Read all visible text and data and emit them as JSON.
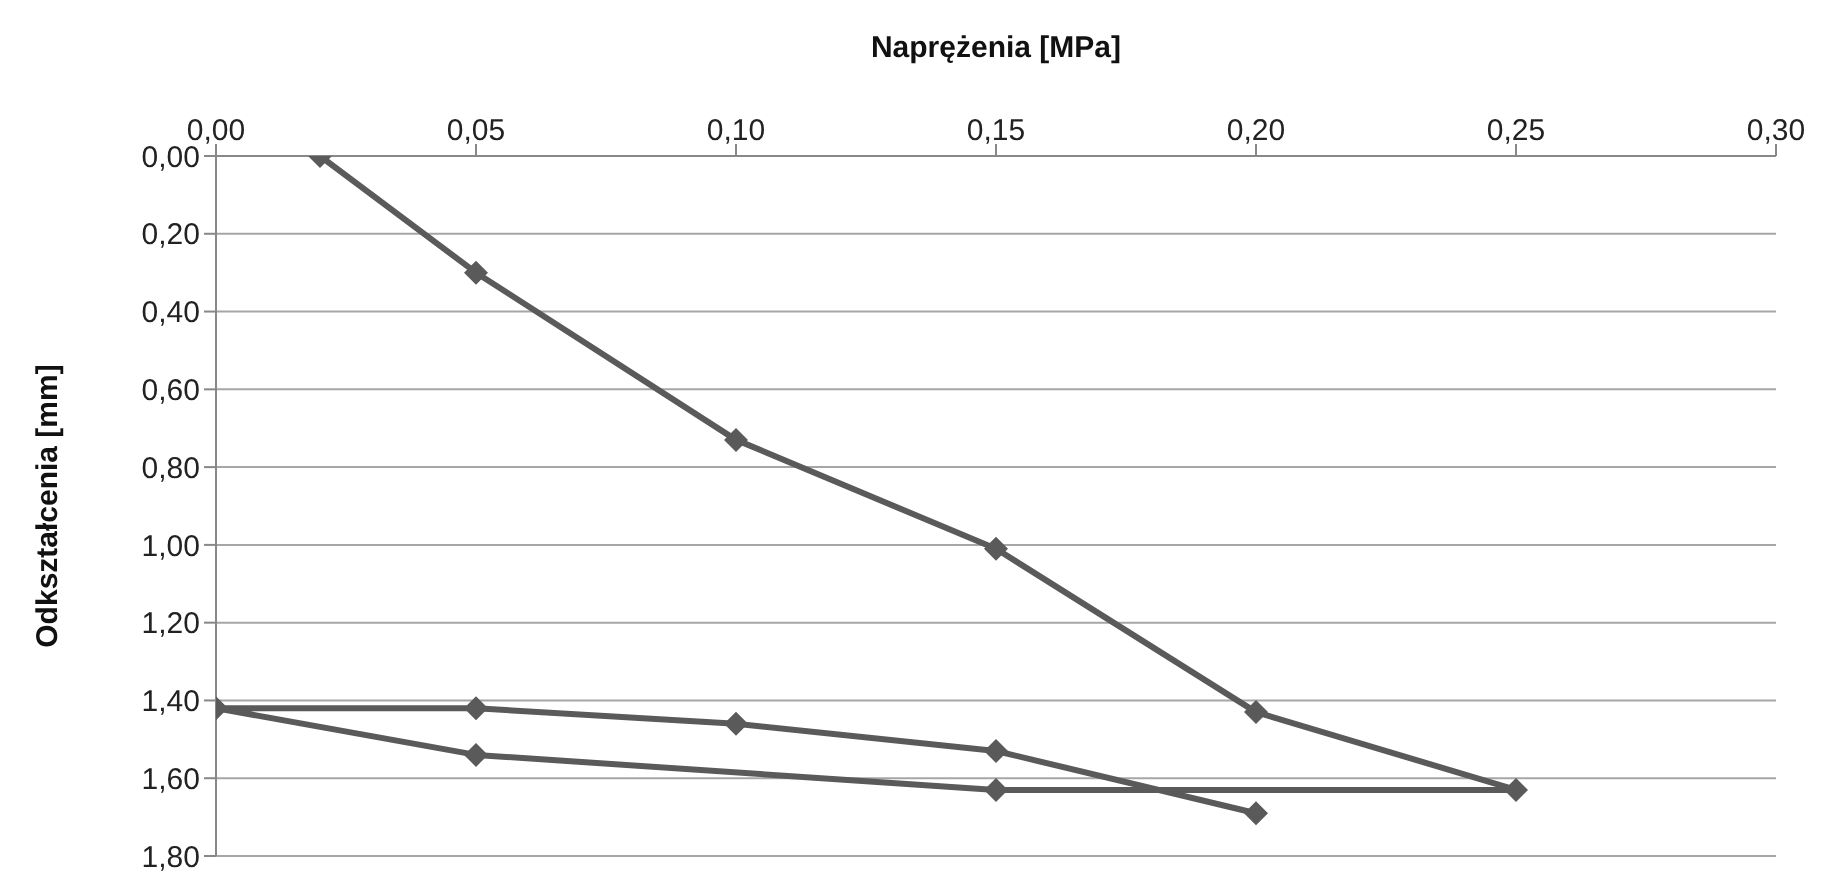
{
  "chart_data": {
    "type": "line",
    "xlabel": "Naprężenia [MPa]",
    "ylabel": "Odkształcenia [mm]",
    "x": [
      0.02,
      0.05,
      0.1,
      0.15,
      0.2,
      0.25,
      0.15,
      0.05,
      0.0,
      0.05,
      0.1,
      0.15,
      0.2
    ],
    "series": [
      {
        "color": "#5a5a5a",
        "values": [
          0.0,
          0.3,
          0.73,
          1.01,
          1.43,
          1.63,
          1.63,
          1.54,
          1.42,
          1.42,
          1.46,
          1.53,
          1.69
        ]
      }
    ],
    "xlim": [
      0,
      0.3
    ],
    "xticks": [
      {
        "value": 0,
        "label": "0,00"
      },
      {
        "value": 0.05,
        "label": "0,05"
      },
      {
        "value": 0.1,
        "label": "0,10"
      },
      {
        "value": 0.15,
        "label": "0,15"
      },
      {
        "value": 0.2,
        "label": "0,20"
      },
      {
        "value": 0.25,
        "label": "0,25"
      },
      {
        "value": 0.3,
        "label": "0,30"
      }
    ],
    "ylim": [
      1.8,
      0
    ],
    "yticks": [
      {
        "value": 0,
        "label": "0,00"
      },
      {
        "value": 0.2,
        "label": "0,20"
      },
      {
        "value": 0.4,
        "label": "0,40"
      },
      {
        "value": 0.6,
        "label": "0,60"
      },
      {
        "value": 0.8,
        "label": "0,80"
      },
      {
        "value": 1,
        "label": "1,00"
      },
      {
        "value": 1.2,
        "label": "1,20"
      },
      {
        "value": 1.4,
        "label": "1,40"
      },
      {
        "value": 1.6,
        "label": "1,60"
      },
      {
        "value": 1.8,
        "label": "1,80"
      }
    ],
    "grid": "y",
    "legend": false,
    "marker": "diamond",
    "line_style": "solid"
  }
}
